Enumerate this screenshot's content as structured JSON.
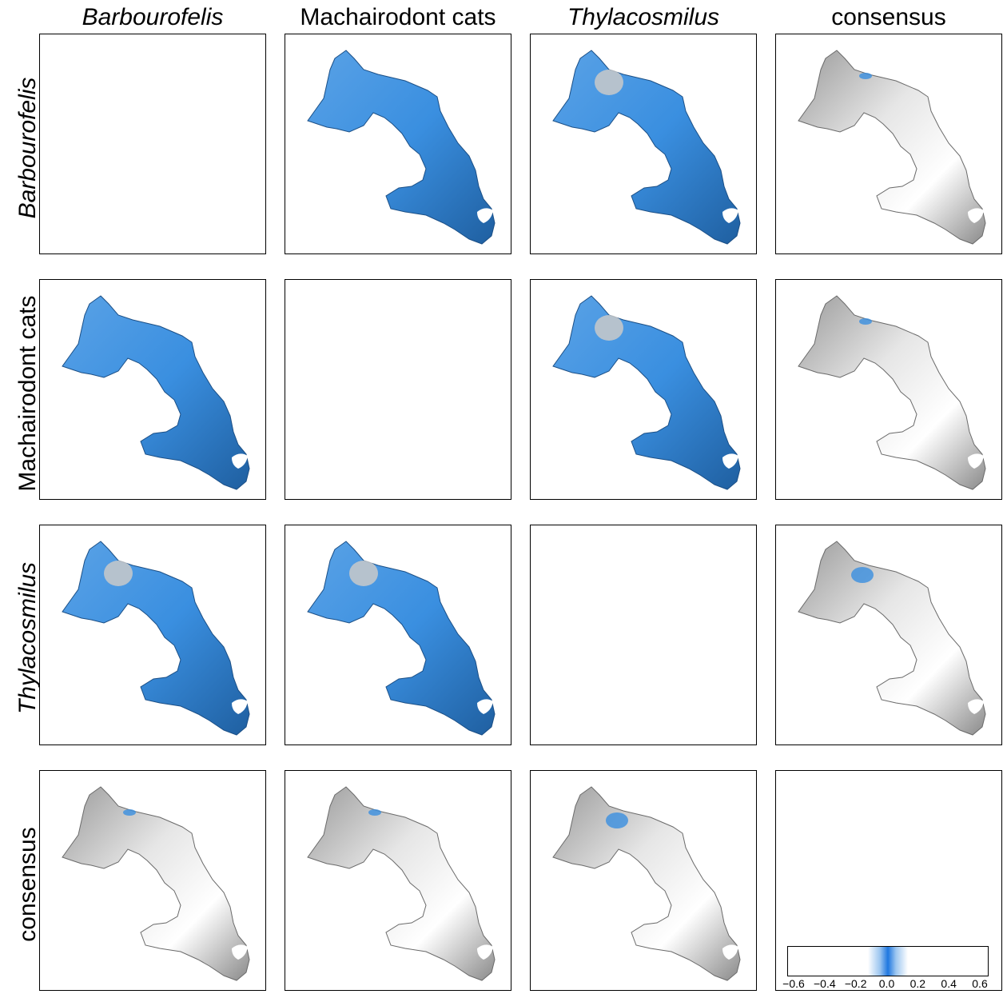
{
  "columns": [
    {
      "label": "Barbourofelis",
      "italic": true
    },
    {
      "label": "Machairodont cats",
      "italic": false
    },
    {
      "label": "Thylacosmilus",
      "italic": true
    },
    {
      "label": "consensus",
      "italic": false
    }
  ],
  "rows": [
    {
      "label": "Barbourofelis",
      "italic": true
    },
    {
      "label": "Machairodont cats",
      "italic": false
    },
    {
      "label": "Thylacosmilus",
      "italic": true
    },
    {
      "label": "consensus",
      "italic": false
    }
  ],
  "panels": [
    [
      {
        "fill": "none"
      },
      {
        "fill": "blue"
      },
      {
        "fill": "blue-patch"
      },
      {
        "fill": "grey-small"
      }
    ],
    [
      {
        "fill": "blue"
      },
      {
        "fill": "none"
      },
      {
        "fill": "blue-patch"
      },
      {
        "fill": "grey-small"
      }
    ],
    [
      {
        "fill": "blue-patch"
      },
      {
        "fill": "blue-patch"
      },
      {
        "fill": "none"
      },
      {
        "fill": "grey-spot"
      }
    ],
    [
      {
        "fill": "grey-small"
      },
      {
        "fill": "grey-small"
      },
      {
        "fill": "grey-spot"
      },
      {
        "fill": "none"
      }
    ]
  ],
  "legend": {
    "ticks": [
      "−0.6",
      "−0.4",
      "−0.2",
      "0.0",
      "0.2",
      "0.4",
      "0.6"
    ],
    "colors": {
      "center": "#1f77e0",
      "edge": "#ffffff"
    }
  },
  "colors": {
    "blue": "#3a8fe0",
    "blue_dark": "#1f5fa0",
    "grey_light": "#f2f2f2",
    "grey_dark": "#7a7a7a"
  }
}
